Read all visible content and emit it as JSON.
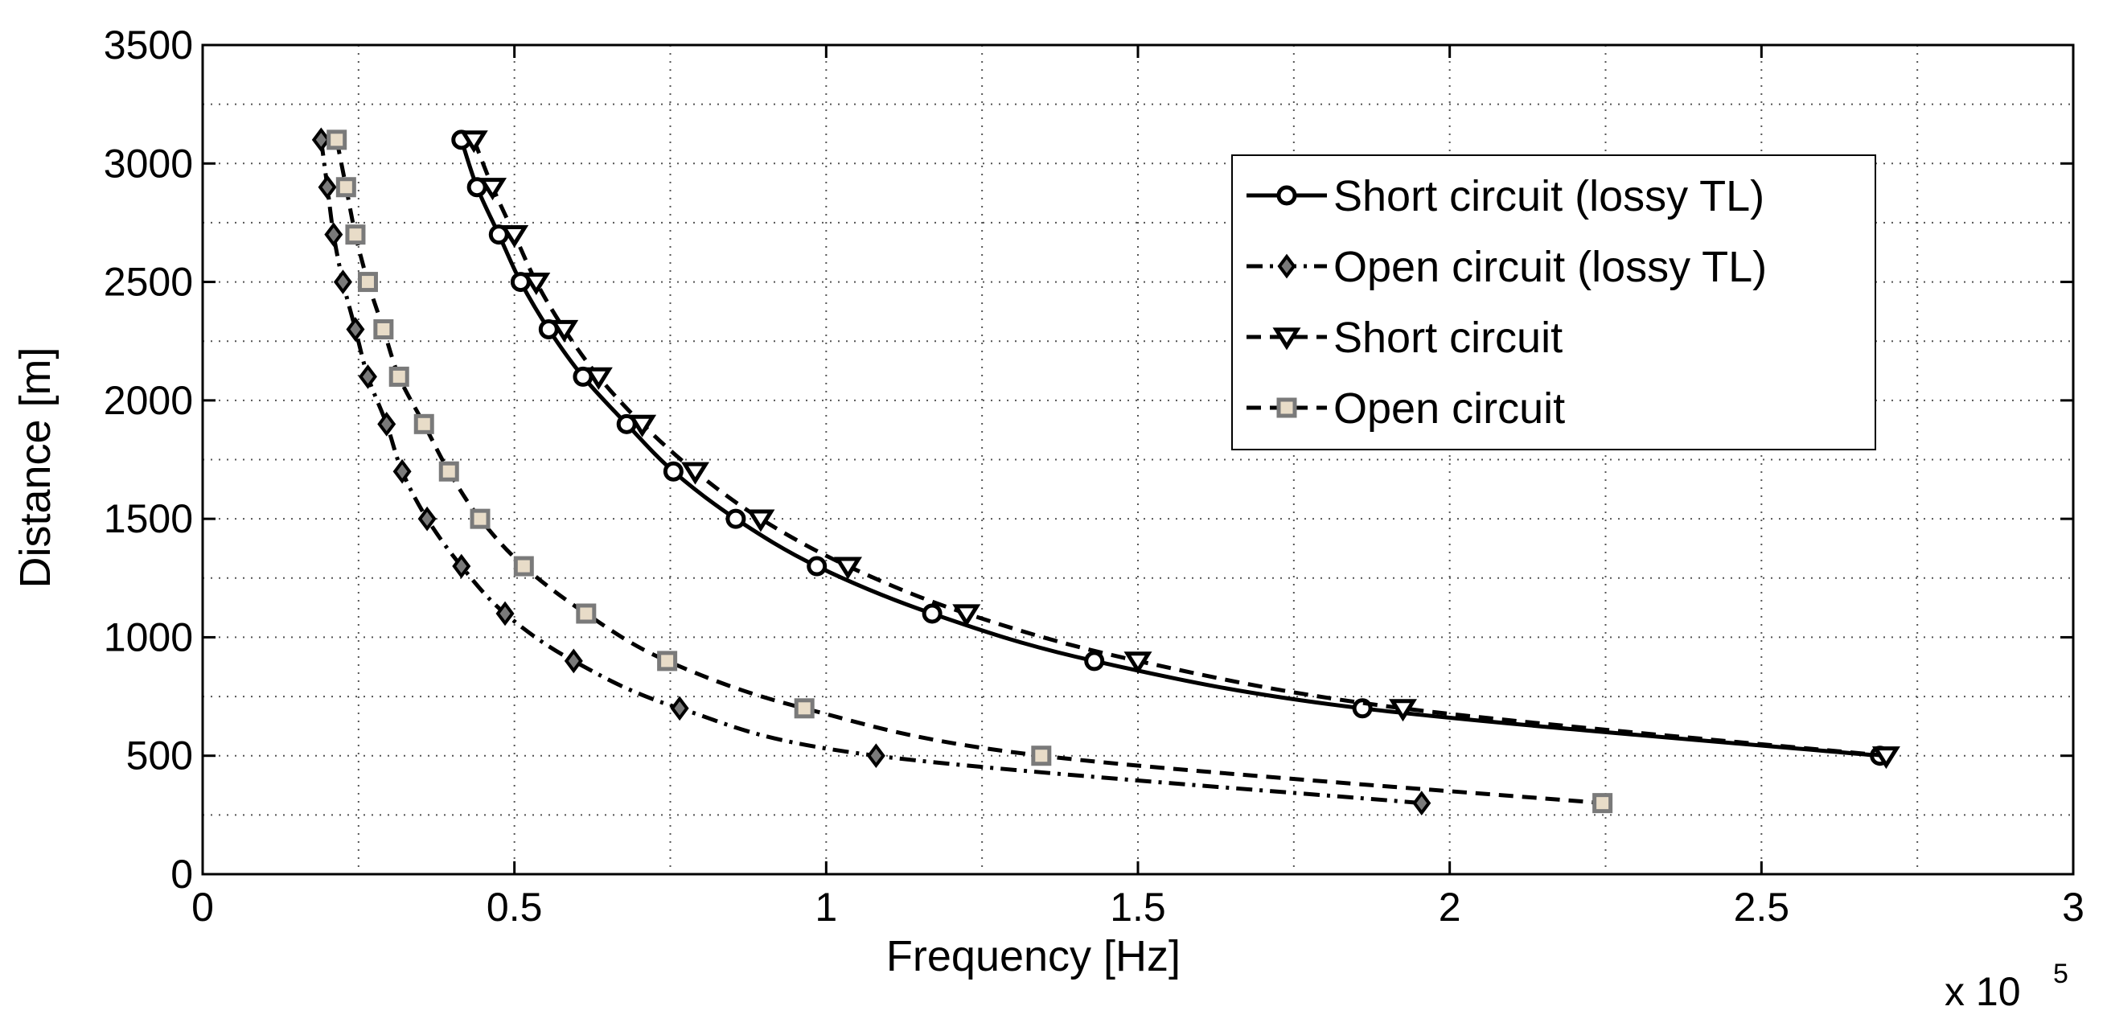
{
  "chart_data": {
    "type": "line",
    "title": "",
    "xlabel": "Frequency [Hz]",
    "ylabel": "Distance [m]",
    "x_multiplier_label": "x 10",
    "x_multiplier_exponent": "5",
    "xlim": [
      0,
      3
    ],
    "ylim": [
      0,
      3500
    ],
    "xticks": [
      0,
      0.5,
      1,
      1.5,
      2,
      2.5,
      3
    ],
    "xtick_labels": [
      "0",
      "0.5",
      "1",
      "1.5",
      "2",
      "2.5",
      "3"
    ],
    "yticks": [
      0,
      500,
      1000,
      1500,
      2000,
      2500,
      3000,
      3500
    ],
    "ytick_labels": [
      "0",
      "500",
      "1000",
      "1500",
      "2000",
      "2500",
      "3000",
      "3500"
    ],
    "grid": true,
    "legend_position": "top-right",
    "series": [
      {
        "name": "Short circuit (lossy TL)",
        "marker": "circle",
        "line_style": "solid",
        "color": "#000000",
        "marker_fill": "#ffffff",
        "x": [
          0.415,
          0.44,
          0.475,
          0.51,
          0.555,
          0.61,
          0.68,
          0.755,
          0.855,
          0.985,
          1.17,
          1.43,
          1.86,
          2.69
        ],
        "y": [
          3100,
          2900,
          2700,
          2500,
          2300,
          2100,
          1900,
          1700,
          1500,
          1300,
          1100,
          900,
          700,
          500
        ]
      },
      {
        "name": "Open circuit (lossy TL)",
        "marker": "diamond",
        "line_style": "dashdot",
        "color": "#000000",
        "marker_fill": "#7a7a7a",
        "x": [
          0.19,
          0.2,
          0.21,
          0.225,
          0.245,
          0.265,
          0.295,
          0.32,
          0.36,
          0.415,
          0.485,
          0.595,
          0.765,
          1.08,
          1.955
        ],
        "y": [
          3100,
          2900,
          2700,
          2500,
          2300,
          2100,
          1900,
          1700,
          1500,
          1300,
          1100,
          900,
          700,
          500,
          300
        ]
      },
      {
        "name": "Short circuit",
        "marker": "triangle-down",
        "line_style": "dashed",
        "color": "#000000",
        "marker_fill": "#ffffff",
        "x": [
          0.435,
          0.465,
          0.5,
          0.535,
          0.58,
          0.635,
          0.705,
          0.79,
          0.895,
          1.035,
          1.225,
          1.5,
          1.925,
          2.7
        ],
        "y": [
          3100,
          2900,
          2700,
          2500,
          2300,
          2100,
          1900,
          1700,
          1500,
          1300,
          1100,
          900,
          700,
          500
        ]
      },
      {
        "name": "Open circuit",
        "marker": "square",
        "line_style": "dashed",
        "color": "#000000",
        "marker_fill": "#e8dcc8",
        "marker_stroke": "#7a7a7a",
        "x": [
          0.215,
          0.23,
          0.245,
          0.265,
          0.29,
          0.315,
          0.355,
          0.395,
          0.445,
          0.515,
          0.615,
          0.745,
          0.965,
          1.345,
          2.245
        ],
        "y": [
          3100,
          2900,
          2700,
          2500,
          2300,
          2100,
          1900,
          1700,
          1500,
          1300,
          1100,
          900,
          700,
          500,
          300
        ]
      }
    ]
  }
}
